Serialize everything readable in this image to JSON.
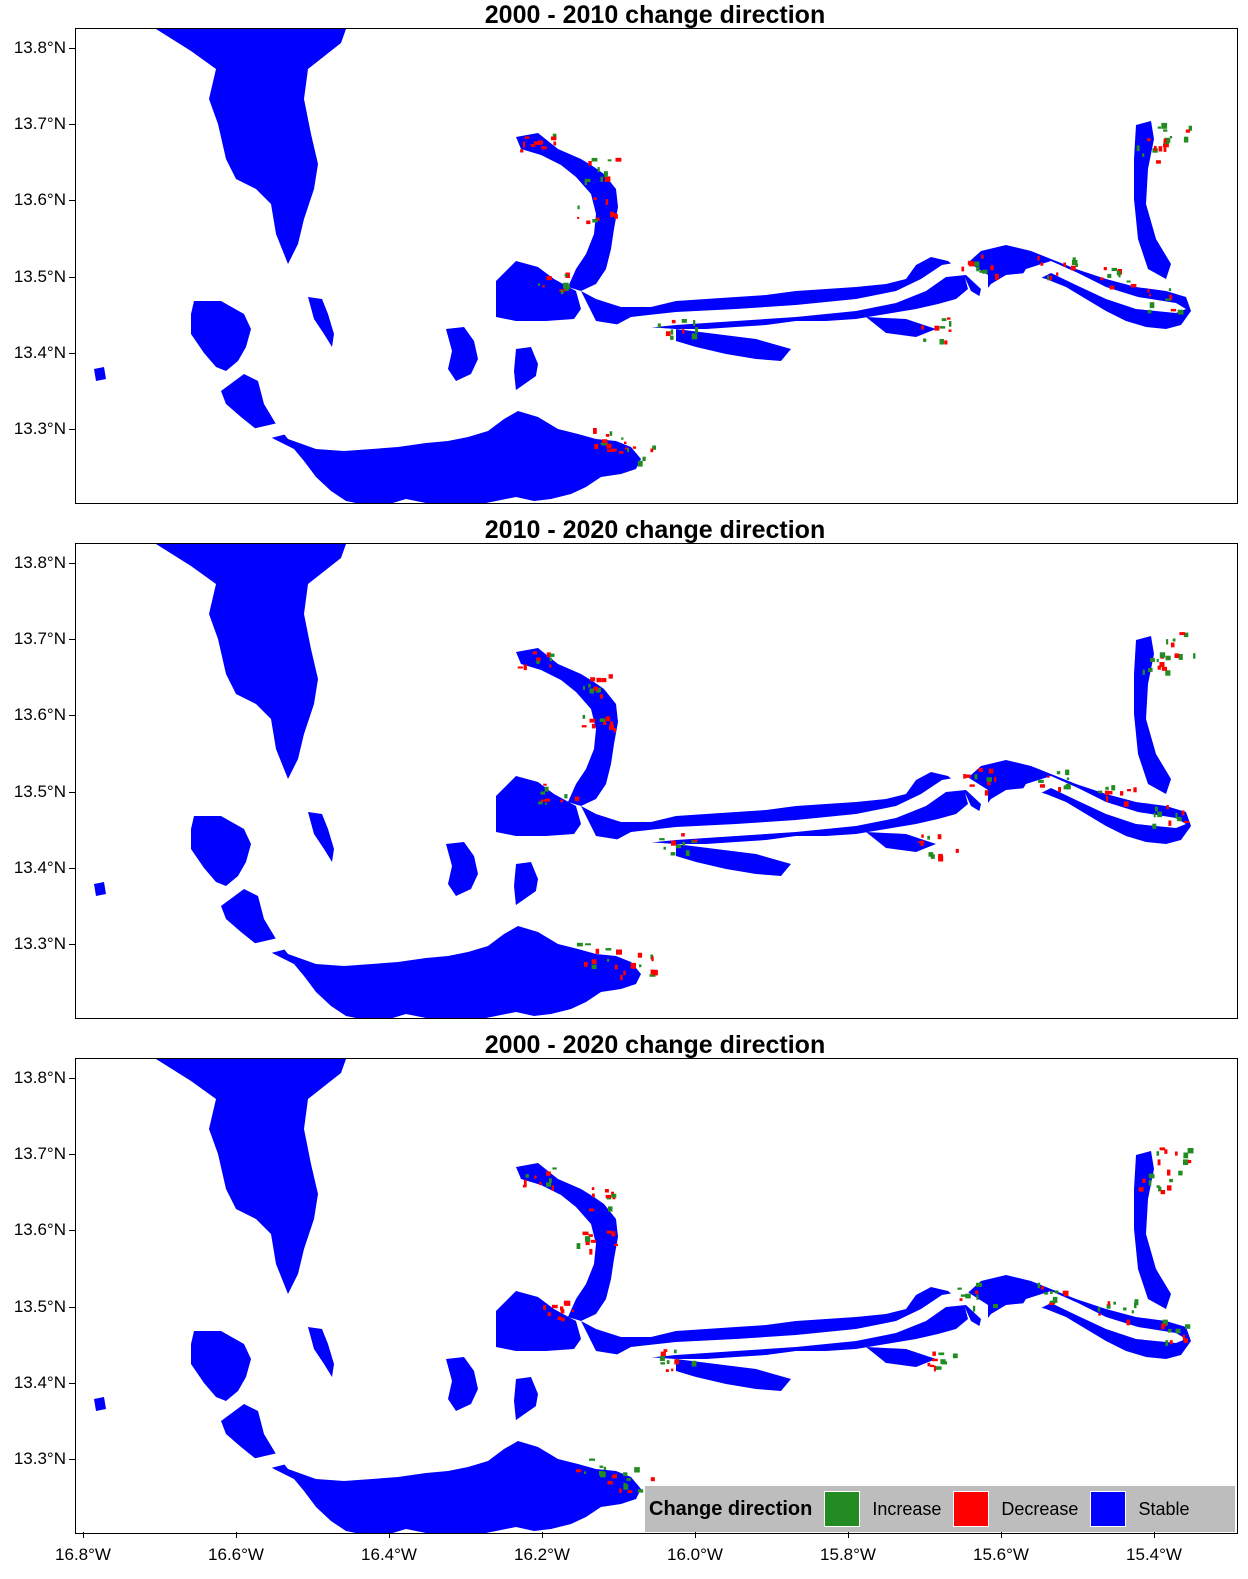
{
  "panels": [
    {
      "title": "2000 - 2010 change direction",
      "green": 0.35,
      "red": 0.25
    },
    {
      "title": "2010 - 2020 change direction",
      "green": 0.5,
      "red": 0.6
    },
    {
      "title": "2000 - 2020 change direction",
      "green": 0.8,
      "red": 0.9
    }
  ],
  "y_axis": {
    "ticks": [
      "13.8°N",
      "13.7°N",
      "13.6°N",
      "13.5°N",
      "13.4°N",
      "13.3°N"
    ]
  },
  "x_axis": {
    "ticks": [
      "16.8°W",
      "16.6°W",
      "16.4°W",
      "16.2°W",
      "16.0°W",
      "15.8°W",
      "15.6°W",
      "15.4°W"
    ]
  },
  "legend": {
    "title": "Change direction",
    "items": [
      {
        "label": "Increase",
        "color": "#228B22"
      },
      {
        "label": "Decrease",
        "color": "#FF0000"
      },
      {
        "label": "Stable",
        "color": "#0000FF"
      }
    ]
  },
  "colors": {
    "stable": "#0000FF",
    "increase": "#228B22",
    "decrease": "#FF0000",
    "legend_bg": "#BDBDBD"
  }
}
